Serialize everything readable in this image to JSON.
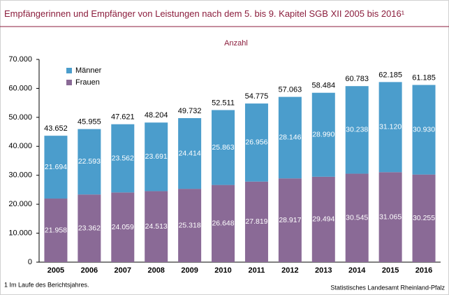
{
  "chart_data": {
    "type": "stacked_bar",
    "title": "Empfängerinnen und Empfänger von Leistungen nach dem 5. bis 9. Kapitel SGB XII 2005 bis 2016¹",
    "subtitle": "Anzahl",
    "categories": [
      "2005",
      "2006",
      "2007",
      "2008",
      "2009",
      "2010",
      "2011",
      "2012",
      "2013",
      "2014",
      "2015",
      "2016"
    ],
    "series": [
      {
        "name": "Frauen",
        "color": "#8a6a96",
        "values": [
          21958,
          23362,
          24059,
          24513,
          25318,
          26648,
          27819,
          28917,
          29494,
          30545,
          31065,
          30255
        ],
        "value_labels": [
          "21.958",
          "23.362",
          "24.059",
          "24.513",
          "25.318",
          "26.648",
          "27.819",
          "28.917",
          "29.494",
          "30.545",
          "31.065",
          "30.255"
        ]
      },
      {
        "name": "Männer",
        "color": "#4b9dcc",
        "values": [
          21694,
          22593,
          23562,
          23691,
          24414,
          25863,
          26956,
          28146,
          28990,
          30238,
          31120,
          30930
        ],
        "value_labels": [
          "21.694",
          "22.593",
          "23.562",
          "23.691",
          "24.414",
          "25.863",
          "26.956",
          "28.146",
          "28.990",
          "30.238",
          "31.120",
          "30.930"
        ]
      }
    ],
    "totals": {
      "values": [
        43652,
        45955,
        47621,
        48204,
        49732,
        52511,
        54775,
        57063,
        58484,
        60783,
        62185,
        61185
      ],
      "value_labels": [
        "43.652",
        "45.955",
        "47.621",
        "48.204",
        "49.732",
        "52.511",
        "54.775",
        "57.063",
        "58.484",
        "60.783",
        "62.185",
        "61.185"
      ]
    },
    "ylim": [
      0,
      70000
    ],
    "yticks": [
      0,
      {
        "value": 10000,
        "label": "10.000"
      },
      {
        "value": 20000,
        "label": "20.000"
      },
      {
        "value": 30000,
        "label": "30.000"
      },
      {
        "value": 40000,
        "label": "40.000"
      },
      {
        "value": 50000,
        "label": "50.000"
      },
      {
        "value": 60000,
        "label": "60.000"
      },
      {
        "value": 70000,
        "label": "70.000"
      }
    ],
    "legend": "top-left",
    "footnote": "1 Im Laufe des Berichtsjahres.",
    "source": "Statistisches Landesamt Rheinland-Pfalz"
  }
}
